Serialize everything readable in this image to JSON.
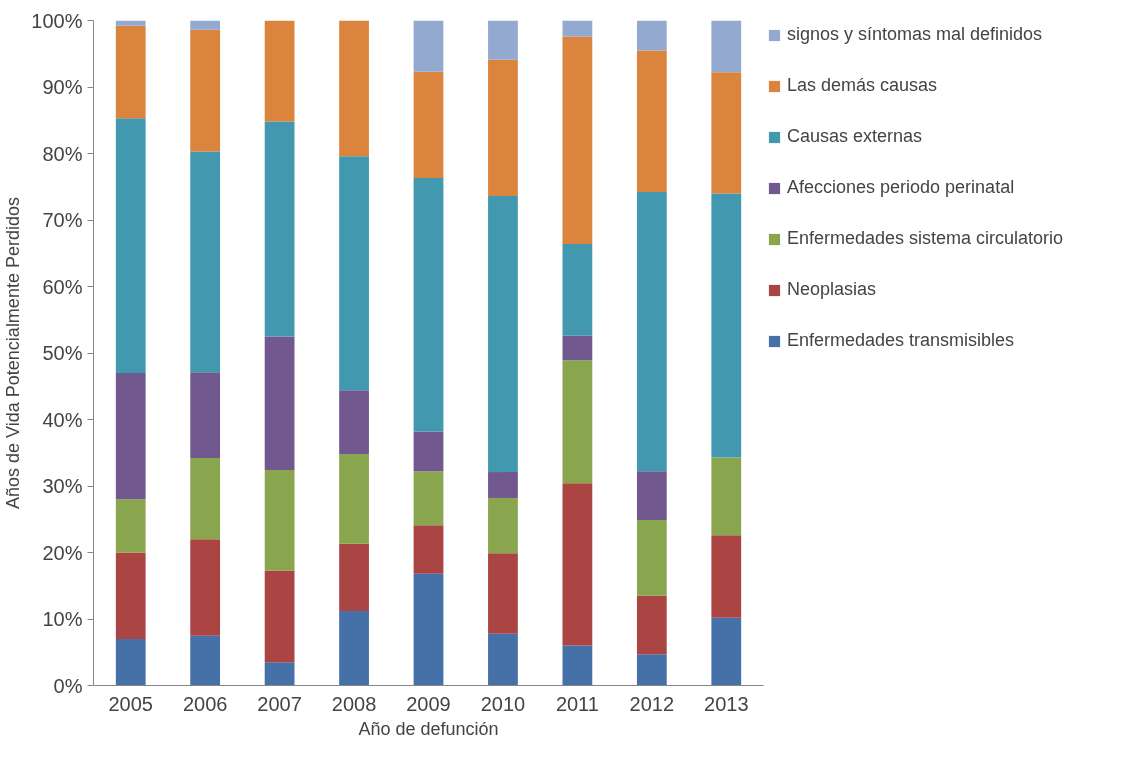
{
  "chart_data": {
    "type": "bar",
    "stacked": true,
    "xlabel": "Año de defunción",
    "ylabel": "Años de Vida Potencialmente Perdidos",
    "categories": [
      "2005",
      "2006",
      "2007",
      "2008",
      "2009",
      "2010",
      "2011",
      "2012",
      "2013"
    ],
    "series": [
      {
        "name": "Enfermedades transmisibles",
        "color": "#4570a8",
        "values": [
          7,
          7.5,
          3.5,
          11.2,
          16.8,
          7.8,
          6,
          4.7,
          10.2
        ]
      },
      {
        "name": "Neoplasias",
        "color": "#aa4544",
        "values": [
          13,
          14.5,
          13.8,
          10.1,
          7.3,
          12.1,
          24.4,
          8.8,
          12.4
        ]
      },
      {
        "name": "Enfermedades sistema circulatorio",
        "color": "#89a54e",
        "values": [
          8,
          12.2,
          15.1,
          13.5,
          8.1,
          8.3,
          18.5,
          11.4,
          11.7
        ]
      },
      {
        "name": "Afecciones periodo perinatal",
        "color": "#71588f",
        "values": [
          19,
          12.9,
          20.1,
          9.6,
          6,
          3.9,
          3.7,
          7.3,
          0
        ]
      },
      {
        "name": "Causas externas",
        "color": "#4198af",
        "values": [
          38.3,
          33.2,
          32.3,
          35.2,
          38.1,
          41.5,
          13.8,
          42,
          39.7
        ]
      },
      {
        "name": "Las demás causas",
        "color": "#db843d",
        "values": [
          13.9,
          18.3,
          15.2,
          20.4,
          16,
          20.5,
          31.2,
          21.3,
          18.2
        ]
      },
      {
        "name": "signos y síntomas mal definidos",
        "color": "#93a9cf",
        "values": [
          0.8,
          1.4,
          0,
          0,
          7.7,
          5.9,
          2.4,
          4.5,
          7.8
        ]
      }
    ],
    "ylim": [
      0,
      100
    ],
    "yticks": [
      {
        "value": 0,
        "label": "0%"
      },
      {
        "value": 10,
        "label": "10%"
      },
      {
        "value": 20,
        "label": "20%"
      },
      {
        "value": 30,
        "label": "30%"
      },
      {
        "value": 40,
        "label": "40%"
      },
      {
        "value": 50,
        "label": "50%"
      },
      {
        "value": 60,
        "label": "60%"
      },
      {
        "value": 70,
        "label": "70%"
      },
      {
        "value": 80,
        "label": "80%"
      },
      {
        "value": 90,
        "label": "90%"
      },
      {
        "value": 100,
        "label": "100%"
      }
    ],
    "grid": false,
    "legend": "right"
  }
}
